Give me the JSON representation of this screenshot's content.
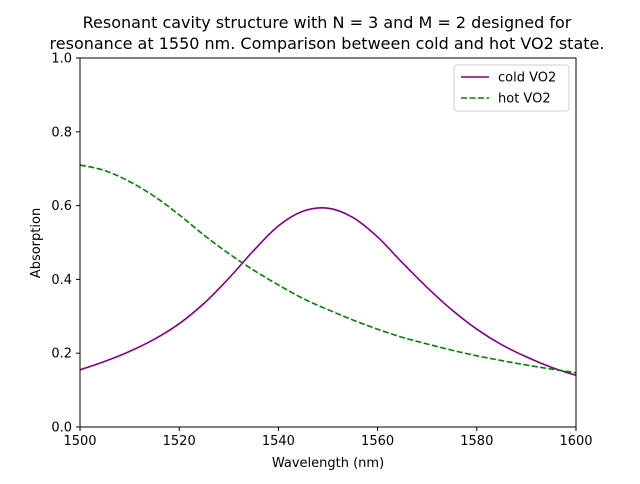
{
  "chart_data": {
    "type": "line",
    "title_line1": "Resonant cavity structure with N = 3 and M = 2 designed for",
    "title_line2": "resonance at 1550 nm. Comparison between cold and hot VO2 state.",
    "xlabel": "Wavelength (nm)",
    "ylabel": "Absorption",
    "xlim": [
      1500,
      1600
    ],
    "ylim": [
      0,
      1.0
    ],
    "xticks": [
      "1500",
      "1520",
      "1540",
      "1560",
      "1580",
      "1600"
    ],
    "yticks": [
      "0.0",
      "0.2",
      "0.4",
      "0.6",
      "0.8",
      "1.0"
    ],
    "grid": false,
    "legend_position": "upper right",
    "x": [
      1500,
      1505,
      1510,
      1515,
      1520,
      1525,
      1530,
      1535,
      1540,
      1545,
      1550,
      1555,
      1560,
      1565,
      1570,
      1575,
      1580,
      1585,
      1590,
      1595,
      1600
    ],
    "series": [
      {
        "name": "cold VO2",
        "color": "#800080",
        "style": "solid",
        "values": [
          0.155,
          0.178,
          0.205,
          0.238,
          0.28,
          0.335,
          0.403,
          0.478,
          0.545,
          0.585,
          0.593,
          0.568,
          0.515,
          0.445,
          0.378,
          0.317,
          0.265,
          0.223,
          0.19,
          0.162,
          0.14
        ]
      },
      {
        "name": "hot VO2",
        "color": "#008000",
        "style": "dashed",
        "values": [
          0.71,
          0.695,
          0.665,
          0.625,
          0.575,
          0.52,
          0.47,
          0.425,
          0.385,
          0.348,
          0.318,
          0.29,
          0.265,
          0.243,
          0.225,
          0.208,
          0.193,
          0.18,
          0.168,
          0.157,
          0.147
        ]
      }
    ]
  }
}
